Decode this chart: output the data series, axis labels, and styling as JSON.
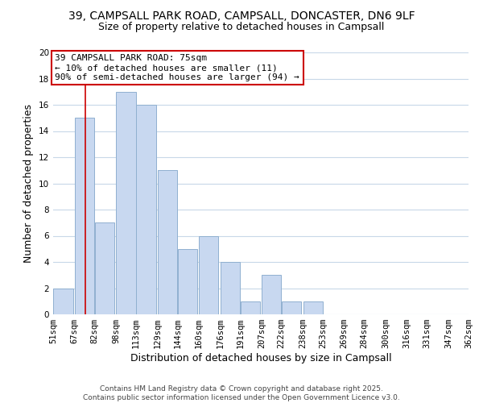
{
  "title_line1": "39, CAMPSALL PARK ROAD, CAMPSALL, DONCASTER, DN6 9LF",
  "title_line2": "Size of property relative to detached houses in Campsall",
  "xlabel": "Distribution of detached houses by size in Campsall",
  "ylabel": "Number of detached properties",
  "bar_left_edges": [
    51,
    67,
    82,
    98,
    113,
    129,
    144,
    160,
    176,
    191,
    207,
    222,
    238,
    253,
    269,
    284,
    300,
    316,
    331,
    347
  ],
  "bar_heights": [
    2,
    15,
    7,
    17,
    16,
    11,
    5,
    6,
    4,
    1,
    3,
    1,
    1,
    0,
    0,
    0,
    0,
    0,
    0,
    0
  ],
  "bin_width": 15,
  "bar_color": "#c8d8f0",
  "bar_edge_color": "#90b0d0",
  "grid_color": "#c8d8e8",
  "background_color": "#ffffff",
  "vline_x": 75,
  "vline_color": "#cc0000",
  "annotation_line1": "39 CAMPSALL PARK ROAD: 75sqm",
  "annotation_line2": "← 10% of detached houses are smaller (11)",
  "annotation_line3": "90% of semi-detached houses are larger (94) →",
  "ylim": [
    0,
    20
  ],
  "yticks": [
    0,
    2,
    4,
    6,
    8,
    10,
    12,
    14,
    16,
    18,
    20
  ],
  "tick_labels": [
    "51sqm",
    "67sqm",
    "82sqm",
    "98sqm",
    "113sqm",
    "129sqm",
    "144sqm",
    "160sqm",
    "176sqm",
    "191sqm",
    "207sqm",
    "222sqm",
    "238sqm",
    "253sqm",
    "269sqm",
    "284sqm",
    "300sqm",
    "316sqm",
    "331sqm",
    "347sqm",
    "362sqm"
  ],
  "footer_text": "Contains HM Land Registry data © Crown copyright and database right 2025.\nContains public sector information licensed under the Open Government Licence v3.0.",
  "title_fontsize": 10,
  "subtitle_fontsize": 9,
  "axis_label_fontsize": 9,
  "tick_fontsize": 7.5,
  "annotation_fontsize": 8,
  "footer_fontsize": 6.5
}
